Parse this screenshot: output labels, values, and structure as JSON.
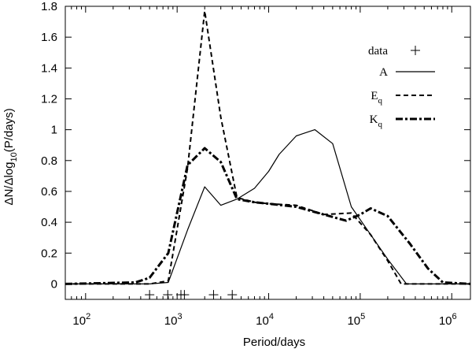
{
  "chart_data": {
    "type": "line",
    "title": "",
    "xlabel": "Period/days",
    "ylabel_parts": [
      "ΔN/Δlog",
      "10",
      "(P/days)"
    ],
    "xscale": "log",
    "xlim": [
      60,
      1600000
    ],
    "ylim": [
      -0.1,
      1.8
    ],
    "x_ticks": [
      {
        "value": 100,
        "base": "10",
        "exp": "2"
      },
      {
        "value": 1000,
        "base": "10",
        "exp": "3"
      },
      {
        "value": 10000,
        "base": "10",
        "exp": "4"
      },
      {
        "value": 100000,
        "base": "10",
        "exp": "5"
      },
      {
        "value": 1000000,
        "base": "10",
        "exp": "6"
      }
    ],
    "y_ticks": [
      {
        "value": 0,
        "label": "0"
      },
      {
        "value": 0.2,
        "label": "0.2"
      },
      {
        "value": 0.4,
        "label": "0.4"
      },
      {
        "value": 0.6,
        "label": "0.6"
      },
      {
        "value": 0.8,
        "label": "0.8"
      },
      {
        "value": 1.0,
        "label": "1"
      },
      {
        "value": 1.2,
        "label": "1.2"
      },
      {
        "value": 1.4,
        "label": "1.4"
      },
      {
        "value": 1.6,
        "label": "1.6"
      },
      {
        "value": 1.8,
        "label": "1.8"
      }
    ],
    "legend_position": "top-right",
    "data_points": {
      "name": "data",
      "marker": "+",
      "x": [
        500,
        790,
        1100,
        1200,
        2500,
        4000
      ],
      "y": [
        -0.07,
        -0.07,
        -0.07,
        -0.07,
        -0.07,
        -0.07
      ]
    },
    "series": [
      {
        "name": "A",
        "name_sub": "",
        "dash": "solid",
        "x": [
          60,
          500,
          800,
          1300,
          2000,
          3000,
          4500,
          7000,
          10000,
          13000,
          20000,
          32000,
          50000,
          80000,
          130000,
          200000,
          320000,
          500000,
          1600000
        ],
        "y": [
          0,
          0,
          0.01,
          0.35,
          0.63,
          0.51,
          0.55,
          0.62,
          0.73,
          0.84,
          0.96,
          1.0,
          0.91,
          0.5,
          0.32,
          0.16,
          0,
          0,
          0
        ]
      },
      {
        "name": "E",
        "name_sub": "q",
        "dash": "dashed",
        "x": [
          60,
          500,
          800,
          1300,
          2000,
          3000,
          4500,
          7000,
          10000,
          20000,
          40000,
          80000,
          130000,
          200000,
          280000,
          500000,
          1600000
        ],
        "y": [
          0,
          0,
          0.02,
          0.75,
          1.77,
          1.08,
          0.56,
          0.53,
          0.52,
          0.51,
          0.45,
          0.46,
          0.32,
          0.15,
          0,
          0,
          0
        ]
      },
      {
        "name": "K",
        "name_sub": "q",
        "dash": "dashdot",
        "x": [
          60,
          350,
          500,
          800,
          1300,
          2000,
          3000,
          4500,
          7000,
          10000,
          20000,
          40000,
          70000,
          100000,
          130000,
          200000,
          350000,
          550000,
          800000,
          1600000
        ],
        "y": [
          0,
          0.01,
          0.04,
          0.2,
          0.77,
          0.88,
          0.79,
          0.55,
          0.53,
          0.52,
          0.5,
          0.45,
          0.41,
          0.45,
          0.49,
          0.44,
          0.26,
          0.1,
          0.01,
          0
        ]
      }
    ]
  }
}
